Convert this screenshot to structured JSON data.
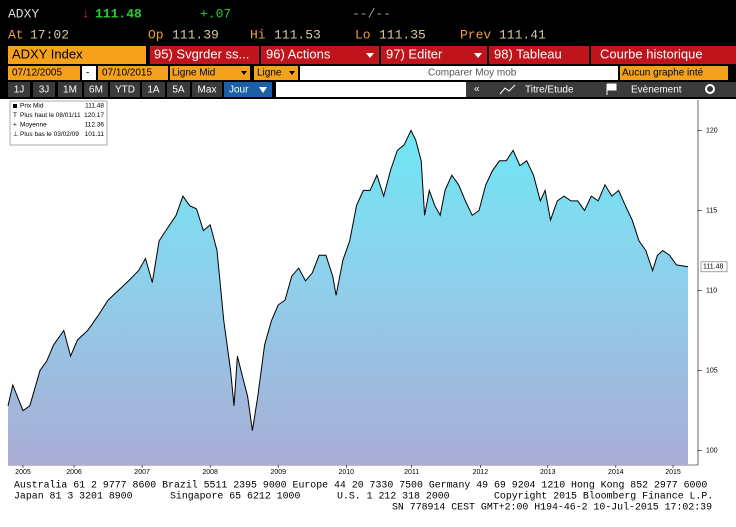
{
  "header": {
    "ticker": "ADXY",
    "arrow": "↓",
    "last": "111.48",
    "change": "+.07",
    "bidask": "--/--",
    "time_label": "At",
    "time": "17:02",
    "open_label": "Op",
    "open": "111.39",
    "hi_label": "Hi",
    "hi": "111.53",
    "lo_label": "Lo",
    "lo": "111.35",
    "prev_label": "Prev",
    "prev": "111.41"
  },
  "toolbar": {
    "security": "ADXY Index",
    "buttons": [
      "95) Svgrder ss...",
      "96) Actions",
      "97) Editer",
      "98) Tableau"
    ],
    "view": "Courbe historique"
  },
  "settings": {
    "start": "07/12/2005",
    "dash": "-",
    "end": "07/10/2015",
    "field": "Ligne Mid",
    "style": "Ligne",
    "compare": "Comparer Moy mob",
    "overlay": "Aucun graphe inté"
  },
  "ranges": {
    "buttons": [
      "1J",
      "3J",
      "1M",
      "6M",
      "YTD",
      "1A",
      "5A",
      "Max"
    ],
    "period": "Jour",
    "collapse": "«",
    "study": "Titre/Etude",
    "event": "Evènement"
  },
  "chart_data": {
    "type": "area",
    "x": [
      2005.53,
      2005.6,
      2005.75,
      2005.85,
      2006.0,
      2006.1,
      2006.2,
      2006.35,
      2006.45,
      2006.55,
      2006.7,
      2006.85,
      2007.0,
      2007.15,
      2007.3,
      2007.45,
      2007.55,
      2007.65,
      2007.75,
      2007.85,
      2008.0,
      2008.1,
      2008.2,
      2008.3,
      2008.4,
      2008.5,
      2008.6,
      2008.7,
      2008.8,
      2008.85,
      2008.9,
      2008.97,
      2009.05,
      2009.12,
      2009.2,
      2009.3,
      2009.4,
      2009.5,
      2009.6,
      2009.7,
      2009.8,
      2009.9,
      2010.0,
      2010.1,
      2010.2,
      2010.3,
      2010.35,
      2010.45,
      2010.55,
      2010.65,
      2010.75,
      2010.85,
      2010.95,
      2011.05,
      2011.15,
      2011.25,
      2011.35,
      2011.45,
      2011.52,
      2011.6,
      2011.65,
      2011.72,
      2011.8,
      2011.88,
      2011.95,
      2012.05,
      2012.15,
      2012.25,
      2012.35,
      2012.45,
      2012.55,
      2012.65,
      2012.75,
      2012.85,
      2012.95,
      2013.05,
      2013.15,
      2013.25,
      2013.35,
      2013.42,
      2013.5,
      2013.6,
      2013.7,
      2013.8,
      2013.9,
      2014.0,
      2014.1,
      2014.2,
      2014.3,
      2014.4,
      2014.5,
      2014.6,
      2014.7,
      2014.8,
      2014.9,
      2015.0,
      2015.07,
      2015.15,
      2015.25,
      2015.35,
      2015.52
    ],
    "series": [
      {
        "name": "Prix Mid",
        "color": "#000000",
        "values": [
          102.8,
          104.1,
          102.5,
          102.8,
          105.0,
          105.6,
          106.6,
          107.5,
          105.9,
          106.9,
          107.5,
          108.4,
          109.4,
          110.0,
          110.6,
          111.25,
          112.0,
          110.5,
          113.1,
          113.75,
          114.7,
          115.9,
          115.3,
          115.1,
          113.75,
          114.1,
          112.5,
          108.1,
          105.0,
          102.8,
          105.9,
          104.7,
          103.4,
          101.25,
          103.4,
          106.6,
          108.1,
          109.1,
          109.4,
          110.9,
          111.4,
          110.6,
          111.1,
          112.2,
          112.2,
          110.9,
          109.7,
          111.9,
          113.1,
          115.3,
          116.25,
          116.25,
          117.2,
          115.9,
          117.5,
          118.75,
          119.1,
          120.0,
          119.4,
          118.1,
          114.7,
          116.25,
          115.3,
          114.7,
          116.25,
          117.2,
          116.6,
          115.6,
          114.7,
          115.0,
          116.6,
          117.5,
          118.1,
          118.1,
          118.75,
          117.8,
          118.1,
          117.2,
          115.6,
          116.25,
          114.4,
          115.6,
          115.9,
          115.6,
          115.6,
          115.0,
          115.9,
          115.6,
          116.6,
          115.9,
          116.25,
          115.3,
          114.4,
          113.1,
          112.5,
          111.25,
          112.2,
          112.5,
          112.2,
          111.6,
          111.48
        ]
      }
    ],
    "xlim": [
      2005.53,
      2015.52
    ],
    "ylim": [
      99.1,
      121.9
    ],
    "yticks": [
      100,
      105,
      110,
      115,
      120
    ],
    "xticks": [
      {
        "value": 2005.75,
        "label": "2005"
      },
      {
        "value": 2006.5,
        "label": "2006"
      },
      {
        "value": 2007.5,
        "label": "2007"
      },
      {
        "value": 2008.5,
        "label": "2008"
      },
      {
        "value": 2009.5,
        "label": "2009"
      },
      {
        "value": 2010.5,
        "label": "2010"
      },
      {
        "value": 2011.46,
        "label": "2011"
      },
      {
        "value": 2012.47,
        "label": "2012"
      },
      {
        "value": 2013.46,
        "label": "2013"
      },
      {
        "value": 2014.46,
        "label": "2014"
      },
      {
        "value": 2015.3,
        "label": "2015"
      }
    ],
    "stats": [
      {
        "label": "Prix Mid",
        "value": 111.48
      },
      {
        "label": "Plus haut le 08/01/11",
        "value": 120.17
      },
      {
        "label": "Moyenne",
        "value": 112.36
      },
      {
        "label": "Plus bas le 03/02/09",
        "value": 101.11
      }
    ]
  },
  "footer": {
    "line1": "Australia 61 2 9777 8600 Brazil 5511 2395 9000 Europe 44 20 7330 7500 Germany 49 69 9204 1210 Hong Kong 852 2977 6000",
    "line2": [
      "Japan 81 3 3201 8900",
      "Singapore 65 6212 1000",
      "U.S. 1 212 318 2000",
      "Copyright 2015 Bloomberg Finance L.P."
    ],
    "line3": "SN 778914 CEST  GMT+2:00 H194-46-2 10-Jul-2015 17:02:39"
  }
}
